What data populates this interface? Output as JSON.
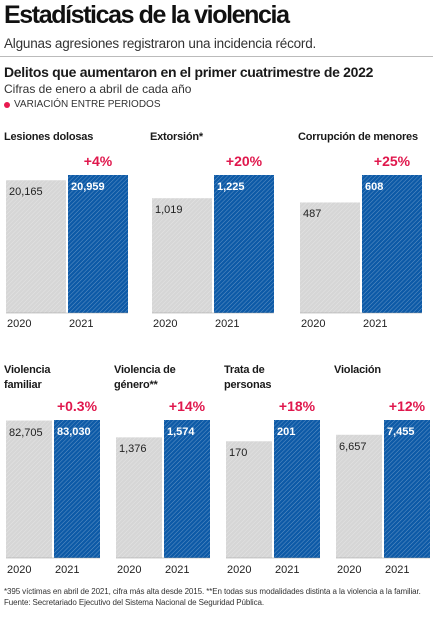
{
  "header": {
    "title": "Estadísticas de la violencia",
    "subtitle": "Algunas agresiones registraron una incidencia récord."
  },
  "section": {
    "title": "Delitos que aumentaron en el primer cuatrimestre de 2022",
    "subtitle": "Cifras de enero a abril de cada año",
    "legend": "VARIACIÓN ENTRE PERIODOS"
  },
  "colors": {
    "previous": "#d6d6d6",
    "current": "#0d5aa7",
    "accent": "#e0184d"
  },
  "chart_data": [
    {
      "type": "bar",
      "title": "Lesiones dolosas",
      "categories": [
        "2020",
        "2021"
      ],
      "values": [
        20165,
        20959
      ],
      "value_labels": [
        "20,165",
        "20,959"
      ],
      "change": "+4%"
    },
    {
      "type": "bar",
      "title": "Extorsión*",
      "categories": [
        "2020",
        "2021"
      ],
      "values": [
        1019,
        1225
      ],
      "value_labels": [
        "1,019",
        "1,225"
      ],
      "change": "+20%"
    },
    {
      "type": "bar",
      "title": "Corrupción de menores",
      "categories": [
        "2020",
        "2021"
      ],
      "values": [
        487,
        608
      ],
      "value_labels": [
        "487",
        "608"
      ],
      "change": "+25%"
    },
    {
      "type": "bar",
      "title": "Violencia familiar",
      "categories": [
        "2020",
        "2021"
      ],
      "values": [
        82705,
        83030
      ],
      "value_labels": [
        "82,705",
        "83,030"
      ],
      "change": "+0.3%"
    },
    {
      "type": "bar",
      "title": "Violencia de género**",
      "categories": [
        "2020",
        "2021"
      ],
      "values": [
        1376,
        1574
      ],
      "value_labels": [
        "1,376",
        "1,574"
      ],
      "change": "+14%"
    },
    {
      "type": "bar",
      "title": "Trata de personas",
      "categories": [
        "2020",
        "2021"
      ],
      "values": [
        170,
        201
      ],
      "value_labels": [
        "170",
        "201"
      ],
      "change": "+18%"
    },
    {
      "type": "bar",
      "title": "Violación",
      "categories": [
        "2020",
        "2021"
      ],
      "values": [
        6657,
        7455
      ],
      "value_labels": [
        "6,657",
        "7,455"
      ],
      "change": "+12%"
    }
  ],
  "footnote": "*395 víctimas en abril de 2021, cifra más alta desde 2015. **En todas sus modalidades distinta a la violencia a la familiar. Fuente: Secretariado Ejecutivo del Sistema Nacional de Seguridad Pública."
}
